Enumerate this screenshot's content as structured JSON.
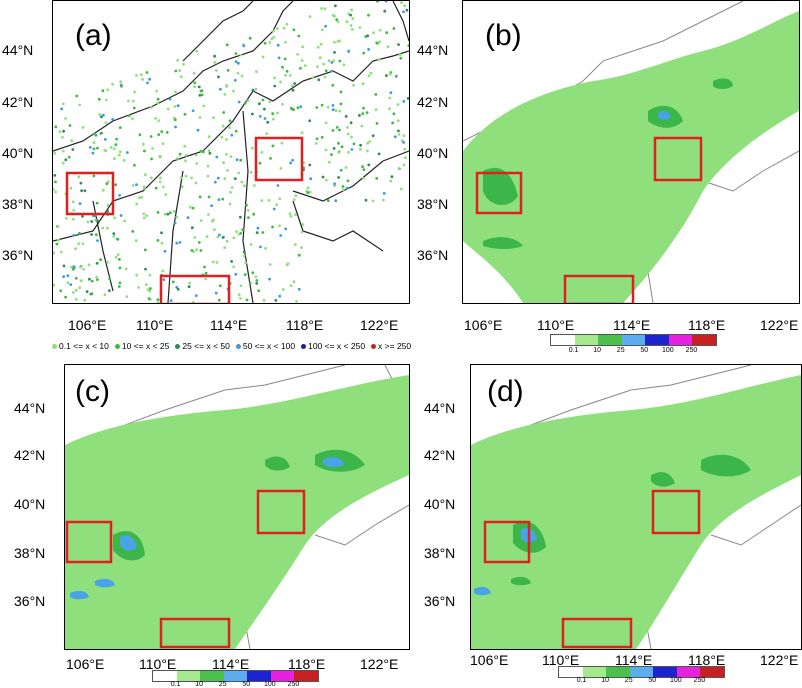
{
  "figure": {
    "panels": [
      {
        "id": "a",
        "label": "(a)"
      },
      {
        "id": "b",
        "label": "(b)"
      },
      {
        "id": "c",
        "label": "(c)"
      },
      {
        "id": "d",
        "label": "(d)"
      }
    ],
    "lat_ticks": [
      "44°N",
      "42°N",
      "40°N",
      "38°N",
      "36°N"
    ],
    "lon_ticks": [
      "106°E",
      "110°E",
      "114°E",
      "118°E",
      "122°E"
    ],
    "station_legend": [
      {
        "label": "0.1 <= x < 10",
        "color": "#8ee07a"
      },
      {
        "label": "10 <= x < 25",
        "color": "#3dbb3d"
      },
      {
        "label": "25 <= x < 50",
        "color": "#2e8b57"
      },
      {
        "label": "50 <= x < 100",
        "color": "#3a9be0"
      },
      {
        "label": "100 <= x < 250",
        "color": "#1a1aa8"
      },
      {
        "label": "x >= 250",
        "color": "#cc2222"
      }
    ],
    "colorbar": {
      "ticks": [
        "0.1",
        "10",
        "25",
        "50",
        "100",
        "250"
      ],
      "colors": [
        "#ffffff",
        "#a4ea8c",
        "#4cc04c",
        "#5aaef0",
        "#1c23d0",
        "#e820e0",
        "#c82020"
      ]
    }
  }
}
